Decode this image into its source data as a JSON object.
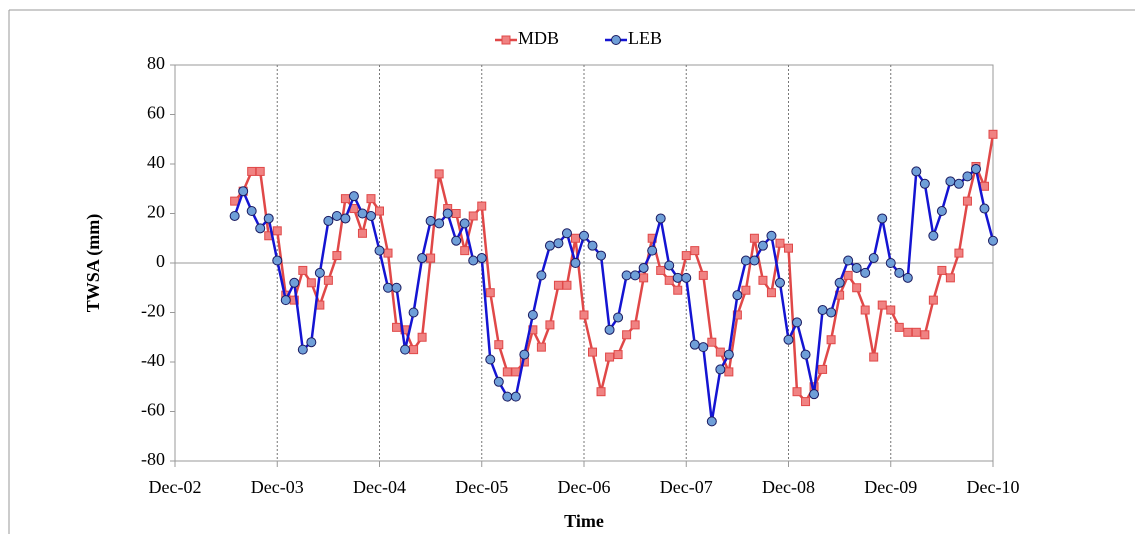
{
  "chart_data": {
    "type": "line",
    "x_label": "Time",
    "y_label": "TWSA (mm)",
    "x": [
      "2003-07",
      "2003-08",
      "2003-09",
      "2003-10",
      "2003-11",
      "2003-12",
      "2004-01",
      "2004-02",
      "2004-03",
      "2004-04",
      "2004-05",
      "2004-06",
      "2004-07",
      "2004-08",
      "2004-09",
      "2004-10",
      "2004-11",
      "2004-12",
      "2005-01",
      "2005-02",
      "2005-03",
      "2005-04",
      "2005-05",
      "2005-06",
      "2005-07",
      "2005-08",
      "2005-09",
      "2005-10",
      "2005-11",
      "2005-12",
      "2006-01",
      "2006-02",
      "2006-03",
      "2006-04",
      "2006-05",
      "2006-06",
      "2006-07",
      "2006-08",
      "2006-09",
      "2006-10",
      "2006-11",
      "2006-12",
      "2007-01",
      "2007-02",
      "2007-03",
      "2007-04",
      "2007-05",
      "2007-06",
      "2007-07",
      "2007-08",
      "2007-09",
      "2007-10",
      "2007-11",
      "2007-12",
      "2008-01",
      "2008-02",
      "2008-03",
      "2008-04",
      "2008-05",
      "2008-06",
      "2008-07",
      "2008-08",
      "2008-09",
      "2008-10",
      "2008-11",
      "2008-12",
      "2009-01",
      "2009-02",
      "2009-03",
      "2009-04",
      "2009-05",
      "2009-06",
      "2009-07",
      "2009-08",
      "2009-09",
      "2009-10",
      "2009-11",
      "2009-12",
      "2010-01",
      "2010-02",
      "2010-03",
      "2010-04",
      "2010-05",
      "2010-06",
      "2010-07",
      "2010-08",
      "2010-09",
      "2010-10",
      "2010-11",
      "2010-12"
    ],
    "series": [
      {
        "name": "MDB",
        "color": "#e04848",
        "marker": "square",
        "marker_fill": "#f08282",
        "values": [
          25,
          29,
          37,
          37,
          11,
          13,
          -13,
          -15,
          -3,
          -8,
          -17,
          -7,
          3,
          26,
          22,
          12,
          26,
          21,
          4,
          -26,
          -27,
          -35,
          -30,
          2,
          36,
          22,
          20,
          5,
          19,
          23,
          -12,
          -33,
          -44,
          -44,
          -40,
          -27,
          -34,
          -25,
          -9,
          -9,
          10,
          -21,
          -36,
          -52,
          -38,
          -37,
          -29,
          -25,
          -6,
          10,
          -3,
          -7,
          -11,
          3,
          5,
          -5,
          -32,
          -36,
          -44,
          -21,
          -11,
          10,
          -7,
          -12,
          8,
          6,
          -52,
          -56,
          -50,
          -43,
          -31,
          -13,
          -5,
          -10,
          -19,
          -38,
          -17,
          -19,
          -26,
          -28,
          -28,
          -29,
          -15,
          -3,
          -6,
          4,
          25,
          39,
          31,
          52
        ]
      },
      {
        "name": "LEB",
        "color": "#1414d2",
        "marker": "circle",
        "marker_fill": "#6f9fd8",
        "values": [
          19,
          29,
          21,
          14,
          18,
          1,
          -15,
          -8,
          -35,
          -32,
          -4,
          17,
          19,
          18,
          27,
          20,
          19,
          5,
          -10,
          -10,
          -35,
          -20,
          2,
          17,
          16,
          20,
          9,
          16,
          1,
          2,
          -39,
          -48,
          -54,
          -54,
          -37,
          -21,
          -5,
          7,
          8,
          12,
          0,
          11,
          7,
          3,
          -27,
          -22,
          -5,
          -5,
          -2,
          5,
          18,
          -1,
          -6,
          -6,
          -33,
          -34,
          -64,
          -43,
          -37,
          -13,
          1,
          1,
          7,
          11,
          -8,
          -31,
          -24,
          -37,
          -53,
          -19,
          -20,
          -8,
          1,
          -2,
          -4,
          2,
          18,
          0,
          -4,
          -6,
          37,
          32,
          11,
          21,
          33,
          32,
          35,
          38,
          22,
          9
        ]
      }
    ],
    "xlim": [
      "2002-12",
      "2010-12"
    ],
    "xticks": [
      {
        "value": "2002-12",
        "label": "Dec-02"
      },
      {
        "value": "2003-12",
        "label": "Dec-03"
      },
      {
        "value": "2004-12",
        "label": "Dec-04"
      },
      {
        "value": "2005-12",
        "label": "Dec-05"
      },
      {
        "value": "2006-12",
        "label": "Dec-06"
      },
      {
        "value": "2007-12",
        "label": "Dec-07"
      },
      {
        "value": "2008-12",
        "label": "Dec-08"
      },
      {
        "value": "2009-12",
        "label": "Dec-09"
      },
      {
        "value": "2010-12",
        "label": "Dec-10"
      }
    ],
    "ylim": [
      -80,
      80
    ],
    "yticks": [
      -80,
      -60,
      -40,
      -20,
      0,
      20,
      40,
      60,
      80
    ],
    "grid": "x",
    "legend": "top"
  }
}
